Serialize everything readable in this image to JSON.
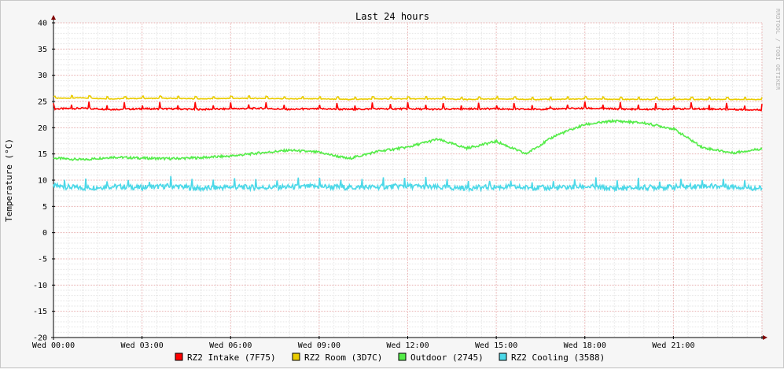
{
  "chart_data": {
    "type": "line",
    "title": "Last 24 hours",
    "ylabel": "Temperature (°C)",
    "xlabel": "",
    "watermark": "RRDTOOL / TOBI OETIKER",
    "ylim": [
      -20,
      40
    ],
    "yticks": [
      "40",
      "35",
      "30",
      "25",
      "20",
      "15",
      "10",
      "5",
      "0",
      "-5",
      "-10",
      "-15",
      "-20"
    ],
    "xticks": [
      "Wed 00:00",
      "Wed 03:00",
      "Wed 06:00",
      "Wed 09:00",
      "Wed 12:00",
      "Wed 15:00",
      "Wed 18:00",
      "Wed 21:00"
    ],
    "grid": true,
    "legend_position": "bottom",
    "series": [
      {
        "name": "RZ2 Intake (7F75)",
        "color": "#ff0000",
        "x": [
          0,
          1,
          2,
          3,
          4,
          5,
          6,
          7,
          8,
          9,
          10,
          11,
          12,
          13,
          14,
          15,
          16,
          17,
          18,
          19,
          20,
          21,
          22,
          23,
          24
        ],
        "values": [
          23.6,
          23.7,
          23.5,
          23.6,
          23.6,
          23.5,
          23.6,
          23.7,
          23.5,
          23.6,
          23.5,
          23.6,
          23.6,
          23.5,
          23.6,
          23.6,
          23.5,
          23.6,
          23.7,
          23.6,
          23.5,
          23.6,
          23.6,
          23.5,
          23.4
        ]
      },
      {
        "name": "RZ2 Room (3D7C)",
        "color": "#eacc00",
        "x": [
          0,
          1,
          2,
          3,
          4,
          5,
          6,
          7,
          8,
          9,
          10,
          11,
          12,
          13,
          14,
          15,
          16,
          17,
          18,
          19,
          20,
          21,
          22,
          23,
          24
        ],
        "values": [
          25.6,
          25.7,
          25.5,
          25.6,
          25.6,
          25.5,
          25.6,
          25.6,
          25.5,
          25.5,
          25.4,
          25.5,
          25.5,
          25.5,
          25.4,
          25.5,
          25.4,
          25.4,
          25.5,
          25.4,
          25.4,
          25.4,
          25.4,
          25.4,
          25.4
        ]
      },
      {
        "name": "Outdoor (2745)",
        "color": "#54ec48",
        "x": [
          0,
          1,
          2,
          3,
          4,
          5,
          6,
          7,
          8,
          9,
          10,
          11,
          12,
          13,
          14,
          15,
          16,
          17,
          18,
          19,
          20,
          21,
          22,
          23,
          24
        ],
        "values": [
          14.2,
          13.9,
          14.4,
          14.2,
          14.1,
          14.3,
          14.6,
          15.2,
          15.7,
          15.3,
          14.1,
          15.5,
          16.3,
          17.8,
          16.1,
          17.4,
          15.0,
          18.5,
          20.6,
          21.3,
          20.9,
          19.8,
          16.2,
          15.2,
          16.0
        ]
      },
      {
        "name": "RZ2 Cooling (3588)",
        "color": "#4bd8e8",
        "x": [
          0,
          1,
          2,
          3,
          4,
          5,
          6,
          7,
          8,
          9,
          10,
          11,
          12,
          13,
          14,
          15,
          16,
          17,
          18,
          19,
          20,
          21,
          22,
          23,
          24
        ],
        "values": [
          8.9,
          8.5,
          8.8,
          8.6,
          8.9,
          8.4,
          8.7,
          8.6,
          8.7,
          8.8,
          8.6,
          8.7,
          8.9,
          8.6,
          8.5,
          8.7,
          8.6,
          8.5,
          8.8,
          8.4,
          8.6,
          8.7,
          8.9,
          8.8,
          8.4
        ]
      }
    ]
  }
}
